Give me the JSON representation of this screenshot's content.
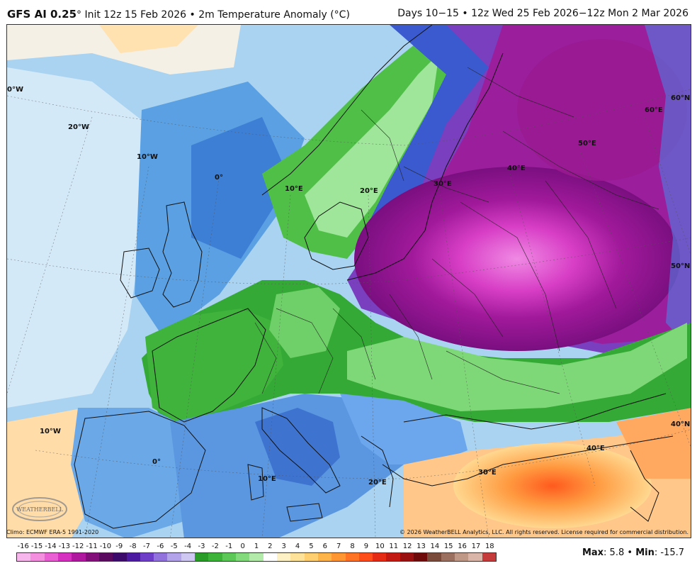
{
  "header": {
    "model": "GFS AI 0.25",
    "deg": "°",
    "init": "Init 12z 15 Feb 2026",
    "bullet": "•",
    "field": "2m Temperature Anomaly (°C)",
    "right": "Days 10−15 • 12z Wed 25 Feb 2026−12z Mon 2 Mar 2026"
  },
  "map_labels": {
    "lon_0w_top": "0°W",
    "lon_20w": "20°W",
    "lon_10w_upper": "10°W",
    "lon_0_upper": "0°",
    "lon_10e_upper": "10°E",
    "lon_20e_upper": "20°E",
    "lon_30e_upper": "30°E",
    "lon_40e_upper": "40°E",
    "lon_50e": "50°E",
    "lon_60e": "60°E",
    "lat_60n": "60°N",
    "lat_50n": "50°N",
    "lat_40n": "40°N",
    "lon_10w_lower": "10°W",
    "lon_0_lower": "0°",
    "lon_10e_lower": "10°E",
    "lon_20e_lower": "20°E",
    "lon_30e_lower": "30°E",
    "lon_40e_lower": "40°E"
  },
  "footer": {
    "climo": "Climo: ECMWF ERA-5 1991-2020",
    "copyright": "© 2026 WeatherBELL Analytics, LLC. All rights reserved. License required for commercial distribution."
  },
  "logo": {
    "text": "WEATHERBELL"
  },
  "colorbar": {
    "labels": [
      "-16",
      "-15",
      "-14",
      "-13",
      "-12",
      "-11",
      "-10",
      "-9",
      "-8",
      "-7",
      "-6",
      "-5",
      "-4",
      "-3",
      "-2",
      "-1",
      "0",
      "1",
      "2",
      "3",
      "4",
      "5",
      "6",
      "7",
      "8",
      "9",
      "10",
      "11",
      "12",
      "13",
      "14",
      "15",
      "16",
      "17",
      "18"
    ],
    "colors": [
      "#f7b7ec",
      "#f48fe0",
      "#ea5fd3",
      "#d630c0",
      "#b0199f",
      "#83107a",
      "#5a0b60",
      "#3b0a6b",
      "#4b1aa0",
      "#6f3ec9",
      "#9272dd",
      "#b2a3ea",
      "#cfc8f2",
      "#2a9c28",
      "#3eb33a",
      "#5cc857",
      "#83da7c",
      "#b2ebaa",
      "#ffffff",
      "#fff1c6",
      "#ffe29a",
      "#ffcf70",
      "#ffb44a",
      "#ff9632",
      "#ff7424",
      "#ff4e1a",
      "#e62b14",
      "#c21a12",
      "#9a1010",
      "#6e0a0a",
      "#7a4a3a",
      "#9c7060",
      "#c09888",
      "#d8b5a8",
      "#c53a3a"
    ]
  },
  "stats": {
    "max_label": "Max",
    "max_value": ": 5.8",
    "bullet": "•",
    "min_label": "Min",
    "min_value": ": -15.7"
  }
}
